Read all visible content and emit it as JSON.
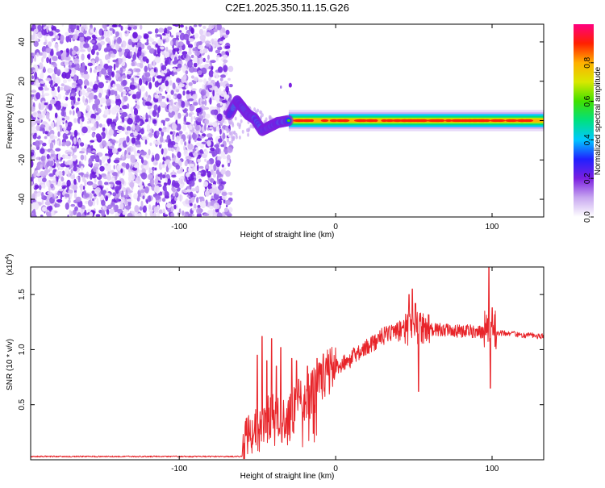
{
  "figure_title": "C2E1.2025.350.11.15.G26",
  "chart_data": [
    {
      "type": "heatmap",
      "title": "C2E1.2025.350.11.15.G26",
      "xlabel": "Height of straight line (km)",
      "ylabel": "Frequency (Hz)",
      "xlim": [
        -195,
        133
      ],
      "ylim": [
        -49,
        49
      ],
      "x_ticks": [
        -100,
        0,
        100
      ],
      "x_tick_labels": [
        "-100",
        "0",
        "100"
      ],
      "y_ticks": [
        -40,
        -20,
        0,
        20,
        40
      ],
      "y_tick_labels": [
        "-40",
        "-20",
        "0",
        "20",
        "40"
      ],
      "noise_region_end_km": -70,
      "signal_band_center_hz": 0,
      "signal_band_halfwidth_hz": 1.5,
      "signal_ridge": [
        {
          "x": -68,
          "y": 3
        },
        {
          "x": -63,
          "y": 10
        },
        {
          "x": -60,
          "y": 7
        },
        {
          "x": -56,
          "y": 3
        },
        {
          "x": -52,
          "y": 1
        },
        {
          "x": -47,
          "y": -5
        },
        {
          "x": -42,
          "y": -3
        },
        {
          "x": -37,
          "y": -1
        },
        {
          "x": -30,
          "y": 0
        },
        {
          "x": -20,
          "y": 0
        },
        {
          "x": -10,
          "y": 0
        },
        {
          "x": 0,
          "y": 0
        },
        {
          "x": 50,
          "y": 0
        },
        {
          "x": 100,
          "y": 0
        },
        {
          "x": 133,
          "y": 0
        }
      ],
      "colorbar": {
        "label": "Normalized spectral amplitude",
        "range": [
          0,
          1
        ],
        "tick_labels": [
          "0.0",
          "0.2",
          "0.4",
          "0.6",
          "0.8"
        ],
        "stops": [
          "#ffffff",
          "#c8a8f0",
          "#7b1fe0",
          "#2020ff",
          "#00c8ff",
          "#00e080",
          "#40e000",
          "#d8e800",
          "#ffb000",
          "#ff2000",
          "#ff0080"
        ]
      }
    },
    {
      "type": "line",
      "xlabel": "Height of straight line (km)",
      "ylabel": "SNR (10 * v/v)",
      "y_multiplier": "(x10",
      "y_multiplier_exp": "4",
      "y_multiplier_close": ")",
      "xlim": [
        -195,
        133
      ],
      "ylim": [
        0,
        1.75
      ],
      "x_ticks": [
        -100,
        0,
        100
      ],
      "x_tick_labels": [
        "-100",
        "0",
        "100"
      ],
      "y_ticks": [
        0.5,
        1.0,
        1.5
      ],
      "y_tick_labels": [
        "0.5",
        "1.0",
        "1.5"
      ],
      "series": [
        {
          "name": "SNR",
          "color": "#e8252a",
          "points": [
            [
              -195,
              0.03
            ],
            [
              -150,
              0.03
            ],
            [
              -100,
              0.03
            ],
            [
              -80,
              0.03
            ],
            [
              -60,
              0.03
            ],
            [
              -58,
              0.18
            ],
            [
              -55,
              0.2
            ],
            [
              -50,
              0.25
            ],
            [
              -45,
              0.35
            ],
            [
              -40,
              0.4
            ],
            [
              -35,
              0.35
            ],
            [
              -30,
              0.35
            ],
            [
              -25,
              0.5
            ],
            [
              -20,
              0.55
            ],
            [
              -15,
              0.6
            ],
            [
              -10,
              0.7
            ],
            [
              -5,
              0.78
            ],
            [
              0,
              0.85
            ],
            [
              5,
              0.88
            ],
            [
              10,
              0.92
            ],
            [
              15,
              0.98
            ],
            [
              20,
              1.02
            ],
            [
              25,
              1.07
            ],
            [
              30,
              1.12
            ],
            [
              35,
              1.15
            ],
            [
              40,
              1.17
            ],
            [
              45,
              1.18
            ],
            [
              50,
              1.2
            ],
            [
              55,
              1.2
            ],
            [
              60,
              1.18
            ],
            [
              65,
              1.18
            ],
            [
              70,
              1.18
            ],
            [
              75,
              1.17
            ],
            [
              80,
              1.17
            ],
            [
              85,
              1.17
            ],
            [
              90,
              1.16
            ],
            [
              95,
              1.16
            ],
            [
              100,
              1.16
            ],
            [
              105,
              1.15
            ],
            [
              110,
              1.15
            ],
            [
              115,
              1.14
            ],
            [
              120,
              1.13
            ],
            [
              125,
              1.13
            ],
            [
              130,
              1.12
            ],
            [
              133,
              1.12
            ]
          ],
          "spikes": [
            [
              -50,
              0.95
            ],
            [
              -47,
              1.12
            ],
            [
              -44,
              0.9
            ],
            [
              -41,
              1.1
            ],
            [
              -38,
              0.85
            ],
            [
              -35,
              1.02
            ],
            [
              -28,
              0.92
            ],
            [
              -25,
              0.9
            ],
            [
              -18,
              0.85
            ],
            [
              -12,
              0.92
            ],
            [
              -8,
              0.96
            ],
            [
              47,
              1.5
            ],
            [
              49,
              1.55
            ],
            [
              51,
              1.42
            ],
            [
              53,
              0.62
            ],
            [
              98,
              1.75
            ],
            [
              99,
              0.65
            ],
            [
              100,
              1.38
            ]
          ]
        }
      ]
    }
  ]
}
